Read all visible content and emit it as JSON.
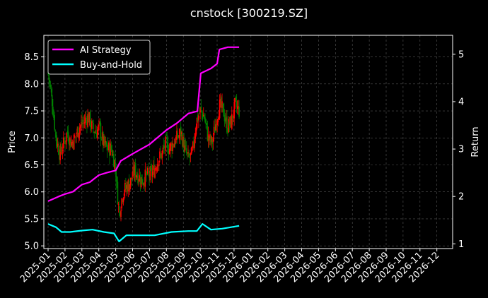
{
  "chart_data": {
    "type": "line",
    "title": "cnstock [300219.SZ]",
    "ylabel_left": "Price",
    "ylabel_right": "Return",
    "y_left_ticks": [
      "5.0",
      "5.5",
      "6.0",
      "6.5",
      "7.0",
      "7.5",
      "8.0",
      "8.5"
    ],
    "y_left_range": [
      4.95,
      8.9
    ],
    "y_right_ticks": [
      "1",
      "2",
      "3",
      "4",
      "5"
    ],
    "y_right_range": [
      0.9,
      5.4
    ],
    "x_ticks": [
      "2025-01",
      "2025-02",
      "2025-03",
      "2025-04",
      "2025-05",
      "2025-06",
      "2025-07",
      "2025-08",
      "2025-09",
      "2025-10",
      "2025-11",
      "2025-12",
      "2026-01",
      "2026-02",
      "2026-03",
      "2026-04",
      "2026-05",
      "2026-06",
      "2026-07",
      "2026-08",
      "2026-09",
      "2026-10",
      "2026-11",
      "2026-12"
    ],
    "grid": true,
    "legend_position": "top-left",
    "colors": {
      "background": "#000000",
      "ai_strategy": "#ff00ff",
      "buy_and_hold": "#00ffff",
      "candle_up": "#ff0000",
      "candle_down": "#008000",
      "grid": "#444444"
    },
    "price_path": [
      {
        "x": "2025-01-01",
        "y": 8.2
      },
      {
        "x": "2025-01-08",
        "y": 7.7
      },
      {
        "x": "2025-01-15",
        "y": 7.0
      },
      {
        "x": "2025-01-22",
        "y": 6.7
      },
      {
        "x": "2025-01-29",
        "y": 6.9
      },
      {
        "x": "2025-02-05",
        "y": 7.1
      },
      {
        "x": "2025-02-12",
        "y": 6.9
      },
      {
        "x": "2025-02-19",
        "y": 7.0
      },
      {
        "x": "2025-02-26",
        "y": 7.2
      },
      {
        "x": "2025-03-05",
        "y": 7.3
      },
      {
        "x": "2025-03-12",
        "y": 7.4
      },
      {
        "x": "2025-03-19",
        "y": 7.2
      },
      {
        "x": "2025-03-26",
        "y": 7.1
      },
      {
        "x": "2025-04-02",
        "y": 7.2
      },
      {
        "x": "2025-04-09",
        "y": 6.9
      },
      {
        "x": "2025-04-16",
        "y": 6.8
      },
      {
        "x": "2025-04-23",
        "y": 6.8
      },
      {
        "x": "2025-04-30",
        "y": 6.5
      },
      {
        "x": "2025-05-07",
        "y": 5.6
      },
      {
        "x": "2025-05-14",
        "y": 6.0
      },
      {
        "x": "2025-05-21",
        "y": 6.1
      },
      {
        "x": "2025-05-28",
        "y": 6.2
      },
      {
        "x": "2025-06-04",
        "y": 6.4
      },
      {
        "x": "2025-06-11",
        "y": 6.3
      },
      {
        "x": "2025-06-18",
        "y": 6.2
      },
      {
        "x": "2025-06-25",
        "y": 6.3
      },
      {
        "x": "2025-07-02",
        "y": 6.3
      },
      {
        "x": "2025-07-09",
        "y": 6.4
      },
      {
        "x": "2025-07-16",
        "y": 6.6
      },
      {
        "x": "2025-07-23",
        "y": 6.7
      },
      {
        "x": "2025-07-30",
        "y": 6.9
      },
      {
        "x": "2025-08-06",
        "y": 6.8
      },
      {
        "x": "2025-08-13",
        "y": 6.9
      },
      {
        "x": "2025-08-20",
        "y": 7.0
      },
      {
        "x": "2025-08-27",
        "y": 7.1
      },
      {
        "x": "2025-09-03",
        "y": 6.8
      },
      {
        "x": "2025-09-10",
        "y": 6.6
      },
      {
        "x": "2025-09-17",
        "y": 6.7
      },
      {
        "x": "2025-09-24",
        "y": 7.3
      },
      {
        "x": "2025-10-01",
        "y": 7.5
      },
      {
        "x": "2025-10-08",
        "y": 7.4
      },
      {
        "x": "2025-10-15",
        "y": 7.0
      },
      {
        "x": "2025-10-22",
        "y": 6.9
      },
      {
        "x": "2025-10-29",
        "y": 7.3
      },
      {
        "x": "2025-11-05",
        "y": 7.6
      },
      {
        "x": "2025-11-12",
        "y": 7.5
      },
      {
        "x": "2025-11-19",
        "y": 7.2
      },
      {
        "x": "2025-11-26",
        "y": 7.3
      },
      {
        "x": "2025-12-03",
        "y": 7.6
      },
      {
        "x": "2025-12-10",
        "y": 7.5
      }
    ],
    "series": [
      {
        "name": "AI Strategy",
        "axis": "right",
        "points": [
          {
            "x": "2025-01-01",
            "y": 1.9
          },
          {
            "x": "2025-01-20",
            "y": 2.0
          },
          {
            "x": "2025-02-01",
            "y": 2.05
          },
          {
            "x": "2025-02-15",
            "y": 2.1
          },
          {
            "x": "2025-03-01",
            "y": 2.25
          },
          {
            "x": "2025-03-15",
            "y": 2.3
          },
          {
            "x": "2025-04-01",
            "y": 2.45
          },
          {
            "x": "2025-04-15",
            "y": 2.5
          },
          {
            "x": "2025-05-01",
            "y": 2.55
          },
          {
            "x": "2025-05-10",
            "y": 2.75
          },
          {
            "x": "2025-06-01",
            "y": 2.9
          },
          {
            "x": "2025-07-01",
            "y": 3.1
          },
          {
            "x": "2025-08-01",
            "y": 3.4
          },
          {
            "x": "2025-08-20",
            "y": 3.55
          },
          {
            "x": "2025-09-10",
            "y": 3.75
          },
          {
            "x": "2025-09-26",
            "y": 3.8
          },
          {
            "x": "2025-10-02",
            "y": 4.6
          },
          {
            "x": "2025-10-20",
            "y": 4.7
          },
          {
            "x": "2025-11-01",
            "y": 4.8
          },
          {
            "x": "2025-11-05",
            "y": 5.1
          },
          {
            "x": "2025-11-20",
            "y": 5.15
          },
          {
            "x": "2025-12-10",
            "y": 5.15
          }
        ]
      },
      {
        "name": "Buy-and-Hold",
        "axis": "right",
        "points": [
          {
            "x": "2025-01-01",
            "y": 1.42
          },
          {
            "x": "2025-01-15",
            "y": 1.35
          },
          {
            "x": "2025-01-25",
            "y": 1.25
          },
          {
            "x": "2025-02-10",
            "y": 1.25
          },
          {
            "x": "2025-03-01",
            "y": 1.28
          },
          {
            "x": "2025-03-20",
            "y": 1.3
          },
          {
            "x": "2025-04-10",
            "y": 1.25
          },
          {
            "x": "2025-04-28",
            "y": 1.22
          },
          {
            "x": "2025-05-07",
            "y": 1.05
          },
          {
            "x": "2025-05-20",
            "y": 1.18
          },
          {
            "x": "2025-06-10",
            "y": 1.18
          },
          {
            "x": "2025-07-10",
            "y": 1.18
          },
          {
            "x": "2025-08-10",
            "y": 1.25
          },
          {
            "x": "2025-09-10",
            "y": 1.27
          },
          {
            "x": "2025-09-25",
            "y": 1.27
          },
          {
            "x": "2025-10-05",
            "y": 1.42
          },
          {
            "x": "2025-10-20",
            "y": 1.3
          },
          {
            "x": "2025-11-10",
            "y": 1.32
          },
          {
            "x": "2025-11-25",
            "y": 1.35
          },
          {
            "x": "2025-12-10",
            "y": 1.38
          }
        ]
      }
    ]
  }
}
